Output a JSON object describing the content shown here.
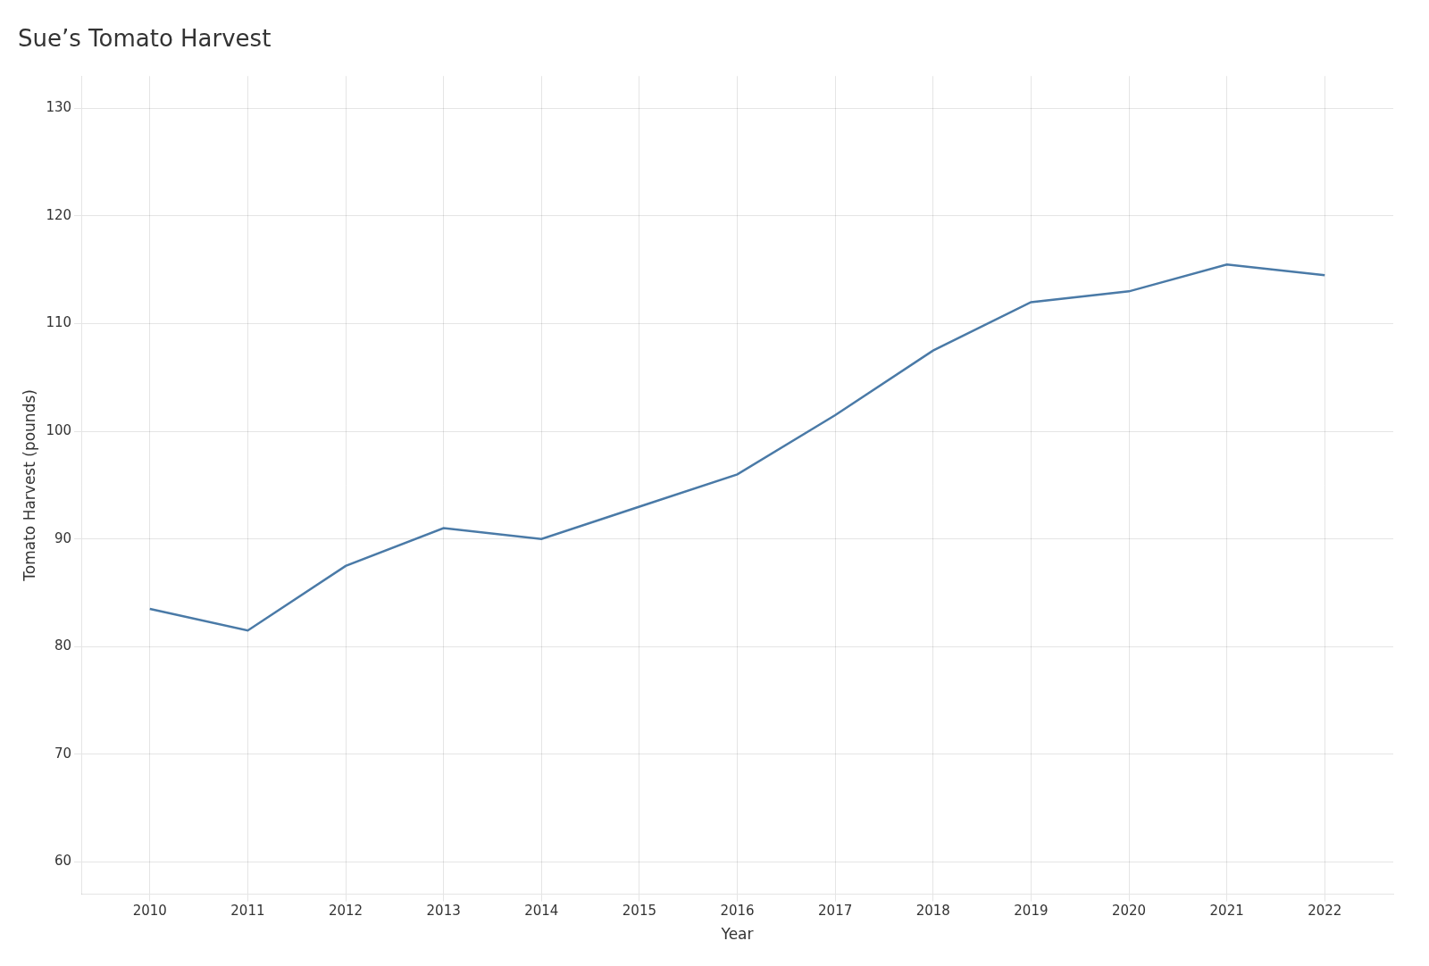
{
  "chart_data": {
    "type": "line",
    "title": "Sue’s Tomato Harvest",
    "xlabel": "Year",
    "ylabel": "Tomato Harvest (pounds)",
    "x": [
      2010,
      2011,
      2012,
      2013,
      2014,
      2015,
      2016,
      2017,
      2018,
      2019,
      2020,
      2021,
      2022
    ],
    "values": [
      83.5,
      81.5,
      87.5,
      91.0,
      90.0,
      93.0,
      96.0,
      101.5,
      107.5,
      112.0,
      113.0,
      115.5,
      114.5
    ],
    "color": "#4a7aa7",
    "xlim": [
      2009.3,
      2022.7
    ],
    "xticks": [
      2010,
      2011,
      2012,
      2013,
      2014,
      2015,
      2016,
      2017,
      2018,
      2019,
      2020,
      2021,
      2022
    ],
    "ylim": [
      57,
      133
    ],
    "yticks": [
      60,
      70,
      80,
      90,
      100,
      110,
      120,
      130
    ],
    "grid": true
  }
}
